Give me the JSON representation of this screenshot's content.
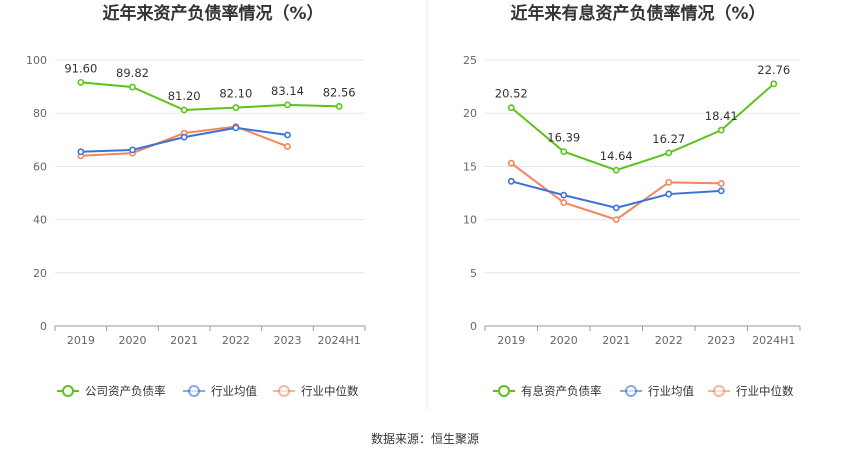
{
  "source": "数据来源：恒生聚源",
  "colors": {
    "main": "#5cc31a",
    "avg": "#3c72d8",
    "median": "#f2875c",
    "grid": "#e6e6e6",
    "axis": "#999999"
  },
  "chart_data": [
    {
      "type": "line",
      "title": "近年来资产负债率情况（%）",
      "categories": [
        "2019",
        "2020",
        "2021",
        "2022",
        "2023",
        "2024H1"
      ],
      "ylim": [
        0,
        100
      ],
      "yticks": [
        0,
        20,
        40,
        60,
        80,
        100
      ],
      "grid": true,
      "legend_position": "bottom",
      "series": [
        {
          "name": "公司资产负债率",
          "values": [
            91.6,
            89.82,
            81.2,
            82.1,
            83.14,
            82.56
          ],
          "labels": [
            "91.60",
            "89.82",
            "81.20",
            "82.10",
            "83.14",
            "82.56"
          ]
        },
        {
          "name": "行业均值",
          "values": [
            65.5,
            66.2,
            71.0,
            74.5,
            71.8,
            null
          ]
        },
        {
          "name": "行业中位数",
          "values": [
            64.0,
            65.0,
            72.5,
            75.0,
            67.5,
            null
          ]
        }
      ]
    },
    {
      "type": "line",
      "title": "近年来有息资产负债率情况（%）",
      "categories": [
        "2019",
        "2020",
        "2021",
        "2022",
        "2023",
        "2024H1"
      ],
      "ylim": [
        0,
        25
      ],
      "yticks": [
        0,
        5,
        10,
        15,
        20,
        25
      ],
      "grid": true,
      "legend_position": "bottom",
      "series": [
        {
          "name": "有息资产负债率",
          "values": [
            20.52,
            16.39,
            14.64,
            16.27,
            18.41,
            22.76
          ],
          "labels": [
            "20.52",
            "16.39",
            "14.64",
            "16.27",
            "18.41",
            "22.76"
          ]
        },
        {
          "name": "行业均值",
          "values": [
            13.6,
            12.3,
            11.1,
            12.4,
            12.7,
            null
          ]
        },
        {
          "name": "行业中位数",
          "values": [
            15.3,
            11.6,
            10.0,
            13.5,
            13.4,
            null
          ]
        }
      ]
    }
  ]
}
